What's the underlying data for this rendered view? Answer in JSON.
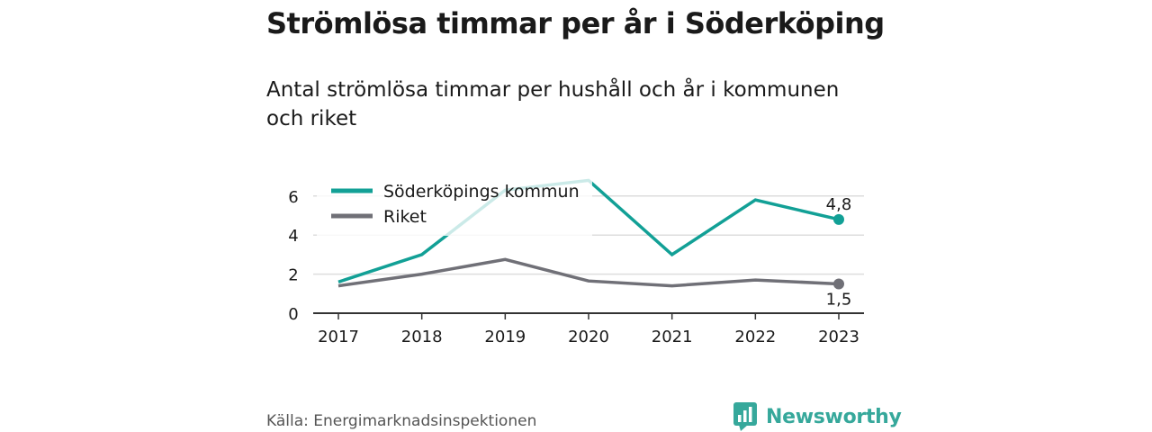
{
  "title": "Strömlösa timmar per år i Söderköping",
  "subtitle": "Antal strömlösa timmar per hushåll och år i kommunen och riket",
  "source": "Källa: Energimarknadsinspektionen",
  "brand": {
    "name": "Newsworthy",
    "logo_icon": "bar-chart-speech-bubble-icon",
    "color": "#36a89b"
  },
  "chart_data": {
    "type": "line",
    "x": [
      "2017",
      "2018",
      "2019",
      "2020",
      "2021",
      "2022",
      "2023"
    ],
    "ylim": [
      0,
      7
    ],
    "yticks": [
      "0",
      "2",
      "4",
      "6"
    ],
    "grid": true,
    "legend_placement": "top-left",
    "series": [
      {
        "name": "Söderköpings kommun",
        "color": "#12a096",
        "values": [
          1.6,
          3.0,
          6.3,
          6.8,
          3.0,
          5.8,
          4.8
        ],
        "end_label": "4,8"
      },
      {
        "name": "Riket",
        "color": "#707077",
        "values": [
          1.4,
          2.0,
          2.75,
          1.65,
          1.4,
          1.7,
          1.5
        ],
        "end_label": "1,5"
      }
    ]
  }
}
